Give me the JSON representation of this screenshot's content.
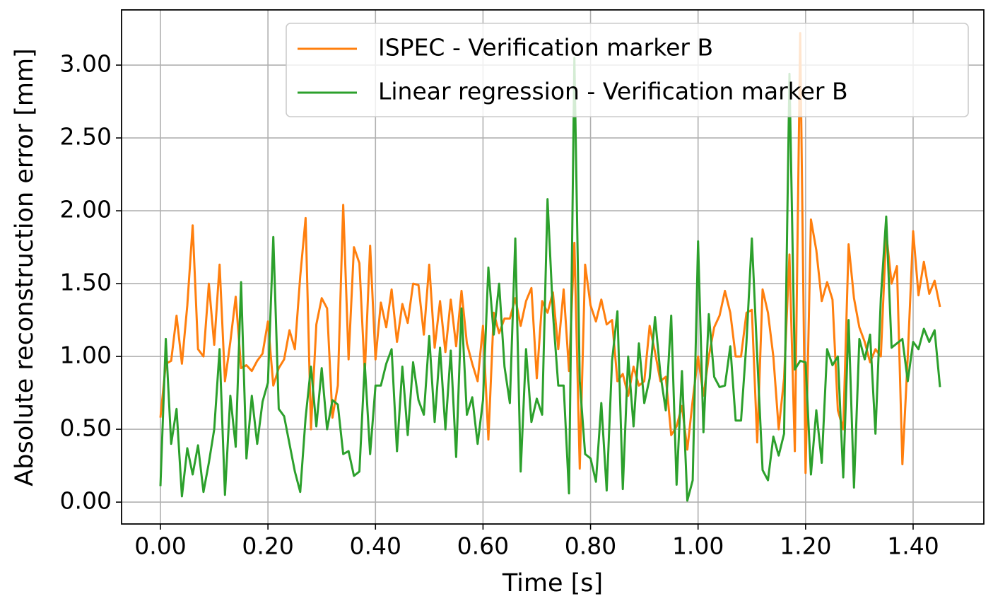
{
  "chart_data": {
    "type": "line",
    "xlabel": "Time [s]",
    "ylabel": "Absolute reconstruction error [mm]",
    "x": [
      0.0,
      0.01,
      0.02,
      0.03,
      0.04,
      0.05,
      0.06,
      0.07,
      0.08,
      0.09,
      0.1,
      0.11,
      0.12,
      0.13,
      0.14,
      0.15,
      0.16,
      0.17,
      0.18,
      0.19,
      0.2,
      0.21,
      0.22,
      0.23,
      0.24,
      0.25,
      0.26,
      0.27,
      0.28,
      0.29,
      0.3,
      0.31,
      0.32,
      0.33,
      0.34,
      0.35,
      0.36,
      0.37,
      0.38,
      0.39,
      0.4,
      0.41,
      0.42,
      0.43,
      0.44,
      0.45,
      0.46,
      0.47,
      0.48,
      0.49,
      0.5,
      0.51,
      0.52,
      0.53,
      0.54,
      0.55,
      0.56,
      0.57,
      0.58,
      0.59,
      0.6,
      0.61,
      0.62,
      0.63,
      0.64,
      0.65,
      0.66,
      0.67,
      0.68,
      0.69,
      0.7,
      0.71,
      0.72,
      0.73,
      0.74,
      0.75,
      0.76,
      0.77,
      0.78,
      0.79,
      0.8,
      0.81,
      0.82,
      0.83,
      0.84,
      0.85,
      0.86,
      0.87,
      0.88,
      0.89,
      0.9,
      0.91,
      0.92,
      0.93,
      0.94,
      0.95,
      0.96,
      0.97,
      0.98,
      0.99,
      1.0,
      1.01,
      1.02,
      1.03,
      1.04,
      1.05,
      1.06,
      1.07,
      1.08,
      1.09,
      1.1,
      1.11,
      1.12,
      1.13,
      1.14,
      1.15,
      1.16,
      1.17,
      1.18,
      1.19,
      1.2,
      1.21,
      1.22,
      1.23,
      1.24,
      1.25,
      1.26,
      1.27,
      1.28,
      1.29,
      1.3,
      1.31,
      1.32,
      1.33,
      1.34,
      1.35,
      1.36,
      1.37,
      1.38,
      1.39,
      1.4,
      1.41,
      1.42,
      1.43,
      1.44,
      1.45
    ],
    "series": [
      {
        "name": "ISPEC - Verification marker B",
        "color": "#ff7f0e",
        "values": [
          0.58,
          0.95,
          0.97,
          1.28,
          0.95,
          1.35,
          1.9,
          1.05,
          1.0,
          1.5,
          1.08,
          1.63,
          0.83,
          1.1,
          1.41,
          0.92,
          0.94,
          0.9,
          0.97,
          1.02,
          1.24,
          0.8,
          0.92,
          0.98,
          1.18,
          1.05,
          1.55,
          1.95,
          0.5,
          1.22,
          1.4,
          1.33,
          0.58,
          0.8,
          2.04,
          0.98,
          1.75,
          1.64,
          0.88,
          1.76,
          0.98,
          1.37,
          1.2,
          1.46,
          1.1,
          1.36,
          1.23,
          1.5,
          1.49,
          1.15,
          1.63,
          1.06,
          1.38,
          1.03,
          1.39,
          1.07,
          1.45,
          1.09,
          0.95,
          0.83,
          1.21,
          0.43,
          1.3,
          1.16,
          1.26,
          1.26,
          1.4,
          1.21,
          1.38,
          1.47,
          0.85,
          1.38,
          1.3,
          1.44,
          1.05,
          1.46,
          0.9,
          1.78,
          0.23,
          1.63,
          1.35,
          1.24,
          1.39,
          1.22,
          1.25,
          0.83,
          0.88,
          0.73,
          0.93,
          0.8,
          0.83,
          1.21,
          1.03,
          0.83,
          0.86,
          0.46,
          0.52,
          0.66,
          0.36,
          0.7,
          1.0,
          0.73,
          1.0,
          1.2,
          1.28,
          1.45,
          1.3,
          1.0,
          1.0,
          1.3,
          1.32,
          0.41,
          1.46,
          1.3,
          1.0,
          0.5,
          0.85,
          1.7,
          0.35,
          3.22,
          0.2,
          1.94,
          1.73,
          1.38,
          1.51,
          1.39,
          0.63,
          0.5,
          1.77,
          1.4,
          1.2,
          1.1,
          0.96,
          1.05,
          1.0,
          1.85,
          1.5,
          1.62,
          0.26,
          1.0,
          1.86,
          1.42,
          1.65,
          1.43,
          1.52,
          1.34
        ]
      },
      {
        "name": "Linear regression - Verification marker B",
        "color": "#2ca02c",
        "values": [
          0.11,
          1.12,
          0.4,
          0.64,
          0.04,
          0.37,
          0.19,
          0.39,
          0.07,
          0.27,
          0.5,
          1.05,
          0.05,
          0.73,
          0.38,
          1.51,
          0.3,
          0.73,
          0.4,
          0.69,
          0.82,
          1.82,
          0.64,
          0.59,
          0.4,
          0.21,
          0.07,
          0.58,
          0.93,
          0.52,
          0.92,
          0.5,
          0.7,
          0.67,
          0.33,
          0.35,
          0.18,
          0.21,
          0.95,
          0.33,
          0.8,
          0.8,
          0.95,
          1.05,
          0.35,
          0.93,
          0.46,
          0.96,
          0.7,
          0.6,
          1.14,
          0.55,
          1.06,
          0.5,
          1.04,
          0.31,
          1.33,
          0.6,
          0.72,
          0.4,
          0.7,
          1.61,
          1.15,
          1.5,
          0.93,
          0.68,
          1.81,
          0.21,
          1.05,
          0.55,
          0.71,
          0.6,
          2.08,
          1.3,
          0.8,
          0.8,
          0.06,
          3.05,
          0.83,
          0.33,
          0.3,
          0.14,
          0.68,
          0.08,
          0.97,
          1.31,
          0.09,
          1.0,
          0.52,
          1.09,
          0.68,
          0.85,
          1.27,
          0.88,
          0.63,
          1.28,
          0.12,
          0.9,
          0.01,
          0.15,
          1.79,
          0.48,
          1.29,
          0.86,
          0.79,
          0.8,
          1.07,
          0.56,
          0.56,
          1.1,
          1.81,
          1.0,
          0.22,
          0.15,
          0.45,
          0.32,
          0.47,
          2.94,
          0.91,
          0.97,
          0.96,
          0.19,
          0.63,
          0.27,
          1.05,
          0.94,
          1.0,
          0.17,
          1.25,
          0.1,
          1.12,
          0.98,
          1.15,
          0.47,
          1.4,
          1.96,
          1.06,
          1.09,
          1.12,
          0.83,
          1.1,
          1.05,
          1.19,
          1.1,
          1.18,
          0.79
        ]
      }
    ],
    "xlim": [
      -0.0723,
      1.5315
    ],
    "ylim": [
      -0.15,
      3.379
    ],
    "xticks": [
      {
        "value": 0,
        "label": "0.00"
      },
      {
        "value": 0.2,
        "label": "0.20"
      },
      {
        "value": 0.4,
        "label": "0.40"
      },
      {
        "value": 0.6,
        "label": "0.60"
      },
      {
        "value": 0.8,
        "label": "0.80"
      },
      {
        "value": 1.0,
        "label": "1.00"
      },
      {
        "value": 1.2,
        "label": "1.20"
      },
      {
        "value": 1.4,
        "label": "1.40"
      }
    ],
    "yticks": [
      {
        "value": 0,
        "label": "0.00"
      },
      {
        "value": 0.5,
        "label": "0.50"
      },
      {
        "value": 1.0,
        "label": "1.00"
      },
      {
        "value": 1.5,
        "label": "1.50"
      },
      {
        "value": 2.0,
        "label": "2.00"
      },
      {
        "value": 2.5,
        "label": "2.50"
      },
      {
        "value": 3.0,
        "label": "3.00"
      }
    ],
    "grid": true,
    "legend": "upper right"
  }
}
